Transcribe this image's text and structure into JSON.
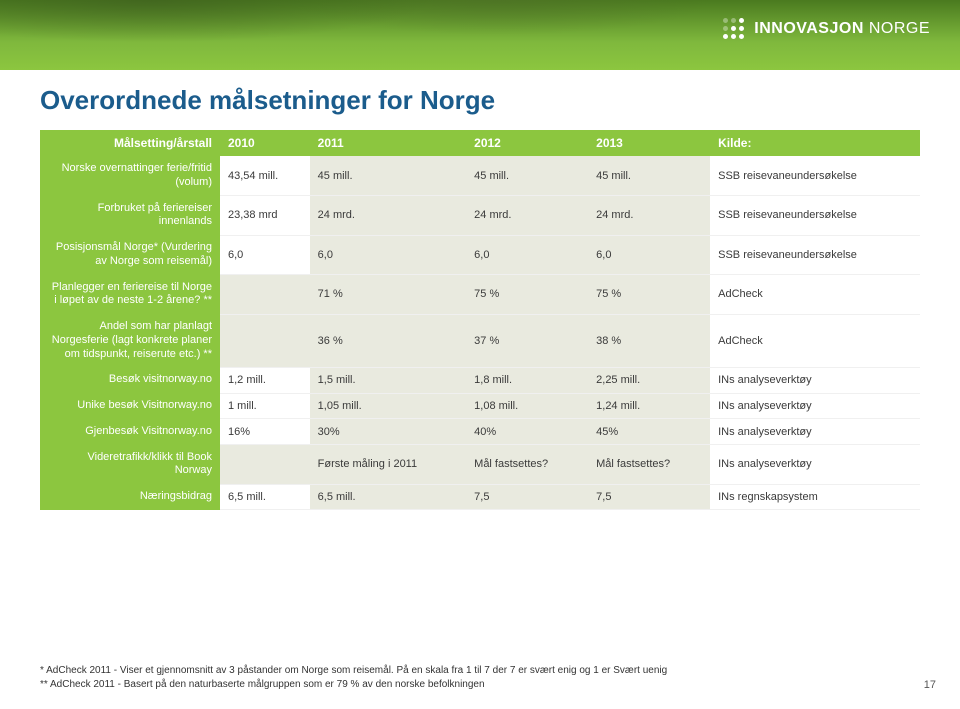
{
  "brand": {
    "word1": "INNOVASJON",
    "word2": "NORGE"
  },
  "title": "Overordnede målsetninger for Norge",
  "page_number": "17",
  "columns": {
    "rowhead": "Målsetting/årstall",
    "y2010": "2010",
    "y2011": "2011",
    "y2012": "2012",
    "y2013": "2013",
    "kilde": "Kilde:"
  },
  "rows": [
    {
      "label": "Norske overnattinger ferie/fritid (volum)",
      "c": [
        "43,54 mill.",
        "45 mill.",
        "45 mill.",
        "45 mill.",
        "SSB reisevaneundersøkelse"
      ],
      "shade": [
        1,
        2,
        3
      ]
    },
    {
      "label": "Forbruket på feriereiser innenlands",
      "c": [
        "23,38 mrd",
        "24 mrd.",
        "24 mrd.",
        "24 mrd.",
        "SSB reisevaneundersøkelse"
      ],
      "shade": [
        1,
        2,
        3
      ]
    },
    {
      "label": "Posisjonsmål Norge* (Vurdering av Norge som reisemål)",
      "c": [
        "6,0",
        "6,0",
        "6,0",
        "6,0",
        "SSB reisevaneundersøkelse"
      ],
      "shade": [
        1,
        2,
        3
      ]
    },
    {
      "label": "Planlegger en feriereise til Norge i løpet av de neste 1-2 årene? **",
      "c": [
        "",
        "71 %",
        "75 %",
        "75 %",
        "AdCheck"
      ],
      "shade": [
        0,
        1,
        2,
        3
      ]
    },
    {
      "label": "Andel som har planlagt Norgesferie (lagt konkrete planer om tidspunkt, reiserute etc.) **",
      "c": [
        "",
        "36 %",
        "37 %",
        "38 %",
        "AdCheck"
      ],
      "shade": [
        0,
        1,
        2,
        3
      ]
    },
    {
      "label": "Besøk visitnorway.no",
      "c": [
        "1,2 mill.",
        "1,5 mill.",
        "1,8 mill.",
        "2,25 mill.",
        "INs analyseverktøy"
      ],
      "shade": [
        1,
        2,
        3
      ]
    },
    {
      "label": "Unike besøk Visitnorway.no",
      "c": [
        "1 mill.",
        "1,05 mill.",
        "1,08 mill.",
        "1,24 mill.",
        "INs analyseverktøy"
      ],
      "shade": [
        1,
        2,
        3
      ]
    },
    {
      "label": "Gjenbesøk Visitnorway.no",
      "c": [
        "16%",
        "30%",
        "40%",
        "45%",
        "INs analyseverktøy"
      ],
      "shade": [
        1,
        2,
        3
      ]
    },
    {
      "label": "Videretrafikk/klikk til Book Norway",
      "c": [
        "",
        "Første måling i 2011",
        "Mål fastsettes?",
        "Mål fastsettes?",
        "INs analyseverktøy"
      ],
      "shade": [
        0,
        1,
        2,
        3
      ]
    },
    {
      "label": "Næringsbidrag",
      "c": [
        "6,5 mill.",
        "6,5 mill.",
        "7,5",
        "7,5",
        "INs regnskapsystem"
      ],
      "shade": [
        1,
        2,
        3
      ]
    }
  ],
  "footnotes": {
    "l1": "*   AdCheck 2011 - Viser et gjennomsnitt av 3 påstander om Norge som reisemål. På en skala fra 1 til 7 der 7 er svært enig og 1 er Svært uenig",
    "l2": "** AdCheck 2011 - Basert på den naturbaserte målgruppen som er 79 % av den norske befolkningen"
  },
  "colors": {
    "accent_green": "#8cc63f",
    "title_blue": "#1b5c8c",
    "shade_bg": "#e9eadf"
  }
}
